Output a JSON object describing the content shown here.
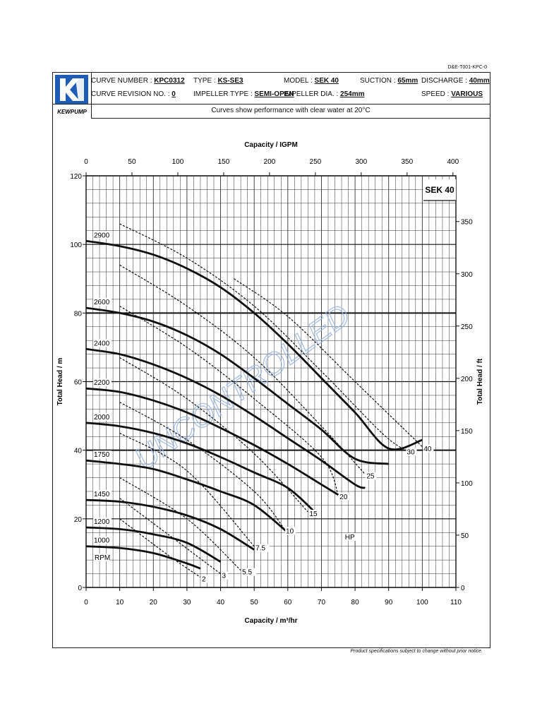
{
  "doc_ref": "D&E-T001-KPC-0",
  "brand": {
    "name": "KEWPUMP",
    "logo_color": "#1f5cb8"
  },
  "header": {
    "curve_number_label": "CURVE NUMBER : ",
    "curve_number": "KPC0312",
    "curve_revision_label": "CURVE REVISION NO. : ",
    "curve_revision": "0",
    "type_label": "TYPE : ",
    "type": "KS-SE3",
    "impeller_type_label": "IMPELLER TYPE : ",
    "impeller_type": "SEMI-OPEN",
    "model_label": "MODEL : ",
    "model": "SEK 40",
    "impeller_dia_label": "IMPELLER DIA. : ",
    "impeller_dia": "254mm",
    "suction_label": "SUCTION : ",
    "suction": "65mm",
    "discharge_label": "DISCHARGE : ",
    "discharge": "40mm",
    "speed_label": "SPEED : ",
    "speed": "VARIOUS",
    "subtitle": "Curves show performance with clear water at 20°C"
  },
  "footnote": "Product specifications subject to change without prior notice.",
  "watermark": {
    "text": "UNCONTROLLED",
    "color": "#9bb5e0"
  },
  "chart_data": {
    "type": "line",
    "model_label": "SEK 40",
    "xlabel": "Capacity / m³/hr",
    "xlabel_top": "Capacity / IGPM",
    "ylabel": "Total Head / m",
    "ylabel_right": "Total Head / ft",
    "xlim": [
      0,
      110
    ],
    "ylim": [
      0,
      120
    ],
    "x_ticks": [
      0,
      10,
      20,
      30,
      40,
      50,
      60,
      70,
      80,
      90,
      100,
      110
    ],
    "y_ticks": [
      0,
      20,
      40,
      60,
      80,
      100,
      120
    ],
    "top_ticks_igpm": [
      0,
      50,
      100,
      150,
      200,
      250,
      300,
      350,
      400
    ],
    "right_ticks_ft": [
      0,
      50,
      100,
      150,
      200,
      250,
      300,
      350
    ],
    "rpm_label": "RPM",
    "hp_label": "HP",
    "grid": true,
    "series": [
      {
        "name": "2900",
        "x": [
          0,
          10,
          20,
          30,
          40,
          50,
          60,
          70,
          80,
          90,
          100
        ],
        "y": [
          101,
          99.5,
          97,
          93,
          87.5,
          80,
          71,
          61,
          51,
          40.5,
          43
        ]
      },
      {
        "name": "2600",
        "x": [
          0,
          10,
          20,
          30,
          40,
          50,
          60,
          70,
          80,
          90
        ],
        "y": [
          81.5,
          80,
          77.5,
          73.5,
          68,
          61,
          53.5,
          46,
          37.5,
          36
        ]
      },
      {
        "name": "2400",
        "x": [
          0,
          10,
          20,
          30,
          40,
          50,
          60,
          70,
          80,
          83
        ],
        "y": [
          69.5,
          68,
          65,
          61,
          56,
          50,
          43.5,
          37,
          30,
          29
        ]
      },
      {
        "name": "2200",
        "x": [
          0,
          10,
          20,
          30,
          40,
          50,
          60,
          70,
          75
        ],
        "y": [
          58,
          57,
          54.5,
          51,
          46.5,
          41.5,
          36,
          30,
          27
        ]
      },
      {
        "name": "2000",
        "x": [
          0,
          10,
          20,
          30,
          40,
          50,
          60,
          68
        ],
        "y": [
          48,
          47,
          45,
          42,
          38,
          33.5,
          29,
          22
        ]
      },
      {
        "name": "1750",
        "x": [
          0,
          10,
          20,
          30,
          40,
          50,
          60
        ],
        "y": [
          37,
          36,
          34.5,
          31.5,
          28,
          24,
          16
        ]
      },
      {
        "name": "1450",
        "x": [
          0,
          10,
          20,
          30,
          40,
          50
        ],
        "y": [
          25.5,
          25,
          23.5,
          21,
          17,
          11
        ]
      },
      {
        "name": "1200",
        "x": [
          0,
          10,
          20,
          30,
          40
        ],
        "y": [
          17.5,
          17,
          15.5,
          13,
          7.5
        ]
      },
      {
        "name": "1000",
        "x": [
          0,
          10,
          20,
          30,
          34
        ],
        "y": [
          12,
          11.5,
          10,
          7,
          5.5
        ]
      }
    ],
    "power_lines_hp": [
      {
        "label": "40",
        "x": [
          44,
          60,
          80,
          100
        ],
        "y": [
          90,
          79,
          60,
          41
        ]
      },
      {
        "label": "30",
        "x": [
          10,
          30,
          50,
          70,
          88,
          95
        ],
        "y": [
          106,
          96,
          82,
          63,
          45,
          40
        ]
      },
      {
        "label": "25",
        "x": [
          10,
          30,
          50,
          70,
          83
        ],
        "y": [
          94,
          82,
          67,
          47,
          33
        ]
      },
      {
        "label": "20",
        "x": [
          10,
          30,
          50,
          70,
          75
        ],
        "y": [
          82,
          70,
          55,
          38,
          27
        ]
      },
      {
        "label": "15",
        "x": [
          10,
          30,
          50,
          66
        ],
        "y": [
          67,
          55,
          39,
          22
        ]
      },
      {
        "label": "10",
        "x": [
          10,
          30,
          50,
          59
        ],
        "y": [
          54,
          43,
          28,
          17
        ]
      },
      {
        "label": "7.5",
        "x": [
          10,
          30,
          50
        ],
        "y": [
          45,
          34,
          12
        ]
      },
      {
        "label": "5.5",
        "x": [
          10,
          30,
          46
        ],
        "y": [
          32,
          20,
          5
        ]
      },
      {
        "label": "3",
        "x": [
          10,
          25,
          40
        ],
        "y": [
          26,
          15,
          4
        ]
      },
      {
        "label": "2",
        "x": [
          10,
          25,
          34
        ],
        "y": [
          20,
          9,
          3
        ]
      }
    ]
  }
}
